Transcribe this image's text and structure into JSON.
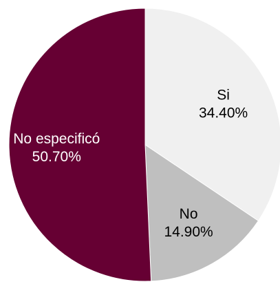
{
  "chart_data": {
    "type": "pie",
    "start_angle_deg": 0,
    "direction": "clockwise",
    "slices": [
      {
        "label": "Si",
        "value": 34.4,
        "value_label": "34.40%",
        "color": "#f0f0f0",
        "text_color": "#000000"
      },
      {
        "label": "No",
        "value": 14.9,
        "value_label": "14.90%",
        "color": "#bfbfbf",
        "text_color": "#000000"
      },
      {
        "label": "No especificó",
        "value": 50.7,
        "value_label": "50.70%",
        "color": "#660033",
        "text_color": "#ffffff"
      }
    ]
  }
}
